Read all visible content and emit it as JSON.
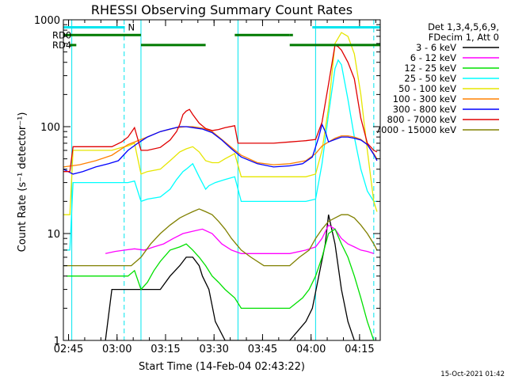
{
  "chart_data": {
    "type": "line",
    "title": "RHESSI Observing Summary Count Rates",
    "xlabel": "Start Time (14-Feb-04 02:43:22)",
    "ylabel": "Count Rate (s⁻¹ detector⁻¹)",
    "x_unit": "minutes since 02:43:22",
    "xlim": [
      0,
      98
    ],
    "ylim": [
      1,
      1000
    ],
    "y_scale": "log",
    "x_ticks": [
      {
        "x": 1.6,
        "label": "02:45"
      },
      {
        "x": 16.6,
        "label": "03:00"
      },
      {
        "x": 31.6,
        "label": "03:15"
      },
      {
        "x": 46.6,
        "label": "03:30"
      },
      {
        "x": 61.6,
        "label": "03:45"
      },
      {
        "x": 76.6,
        "label": "04:00"
      },
      {
        "x": 91.6,
        "label": "04:15"
      }
    ],
    "y_ticks": [
      {
        "y": 1,
        "label": "1"
      },
      {
        "y": 10,
        "label": "10"
      },
      {
        "y": 100,
        "label": "100"
      },
      {
        "y": 1000,
        "label": "1000"
      }
    ],
    "legend_header": [
      "Det 1,3,4,5,6,9,",
      "FDecim 1, Att 0"
    ],
    "legend_position": "right",
    "timestamp": "15-Oct-2021 01:42",
    "markers": [
      {
        "label": "N",
        "color": "#00e5ee",
        "y": 850,
        "segments": [
          [
            0,
            19
          ]
        ]
      },
      {
        "label": "RD0",
        "color": "#007a00",
        "y": 720,
        "segments": [
          [
            0,
            24
          ],
          [
            53,
            70
          ],
          [
            70,
            71
          ]
        ]
      },
      {
        "label": "RD4",
        "color": "#007a00",
        "y": 580,
        "segments": [
          [
            2,
            4
          ],
          [
            24,
            44
          ],
          [
            70,
            98
          ]
        ]
      }
    ],
    "marker_extra": [
      {
        "color": "#00e5ee",
        "y": 850,
        "segments": [
          [
            77,
            98
          ]
        ]
      }
    ],
    "vlines": [
      {
        "x": 2.6,
        "color": "#00e5ee",
        "style": "solid"
      },
      {
        "x": 18.8,
        "color": "#00e5ee",
        "style": "dashed"
      },
      {
        "x": 24.0,
        "color": "#00e5ee",
        "style": "solid"
      },
      {
        "x": 54.0,
        "color": "#00e5ee",
        "style": "solid"
      },
      {
        "x": 78.0,
        "color": "#00e5ee",
        "style": "solid"
      },
      {
        "x": 96.0,
        "color": "#00e5ee",
        "style": "dashed"
      }
    ],
    "series": [
      {
        "name": "3 - 6 keV",
        "color": "#000000",
        "x": [
          13,
          15,
          18,
          22,
          26,
          30,
          33,
          36,
          38,
          40,
          42,
          43,
          45,
          47,
          50,
          55,
          60,
          65,
          70,
          75,
          77,
          79,
          81,
          82,
          84,
          86,
          88,
          90,
          92,
          94,
          96
        ],
        "y": [
          1,
          3,
          3,
          3,
          3,
          3,
          4,
          5,
          6,
          6,
          5,
          4,
          3,
          1.5,
          1,
          1,
          1,
          1,
          1,
          1.5,
          2,
          4,
          8,
          15,
          8,
          3,
          1.5,
          1,
          1,
          1,
          1
        ]
      },
      {
        "name": "6 - 12 keV",
        "color": "#ff00ff",
        "x": [
          13,
          16,
          19,
          22,
          25,
          28,
          31,
          34,
          37,
          40,
          43,
          46,
          49,
          52,
          55,
          60,
          65,
          70,
          75,
          78,
          80,
          82,
          84,
          86,
          88,
          90,
          92,
          94,
          96
        ],
        "y": [
          6.5,
          6.8,
          7,
          7.2,
          7,
          7.5,
          8,
          9,
          10,
          10.5,
          11,
          10,
          8,
          7,
          6.5,
          6.5,
          6.5,
          6.5,
          7,
          7.5,
          9,
          12,
          11,
          9,
          8,
          7.5,
          7,
          6.8,
          6.5
        ]
      },
      {
        "name": "12 - 25 keV",
        "color": "#00e000",
        "x": [
          1,
          3,
          6,
          9,
          12,
          15,
          18,
          20,
          22,
          24,
          26,
          28,
          30,
          33,
          36,
          38,
          40,
          42,
          44,
          46,
          48,
          50,
          53,
          55,
          58,
          62,
          66,
          70,
          74,
          76,
          78,
          80,
          82,
          84,
          86,
          88,
          90,
          92,
          94,
          96
        ],
        "y": [
          4,
          4,
          4,
          4,
          4,
          4,
          4,
          4,
          4.5,
          3,
          3.5,
          4.5,
          5.5,
          7,
          7.5,
          8,
          7,
          6,
          5,
          4,
          3.5,
          3,
          2.5,
          2,
          2,
          2,
          2,
          2,
          2.5,
          3,
          4,
          6,
          10,
          11,
          8,
          6,
          4,
          2.5,
          1.5,
          1
        ]
      },
      {
        "name": "25 - 50 keV",
        "color": "#00ffff",
        "x": [
          0,
          2,
          3,
          5,
          10,
          15,
          18,
          20,
          22,
          24,
          26,
          30,
          33,
          35,
          37,
          38,
          40,
          42,
          44,
          45,
          47,
          50,
          53,
          55,
          60,
          65,
          70,
          75,
          78,
          80,
          82,
          84,
          85,
          86,
          88,
          90,
          92,
          94,
          96,
          97
        ],
        "y": [
          7,
          7,
          30,
          30,
          30,
          30,
          30,
          30,
          31,
          20,
          21,
          22,
          26,
          32,
          38,
          40,
          45,
          34,
          26,
          28,
          30,
          32,
          34,
          20,
          20,
          20,
          20,
          20,
          21,
          45,
          130,
          350,
          420,
          380,
          180,
          80,
          40,
          25,
          20,
          20
        ]
      },
      {
        "name": "50 - 100 keV",
        "color": "#e6e600",
        "x": [
          0,
          2,
          3,
          5,
          10,
          15,
          18,
          20,
          22,
          24,
          26,
          30,
          33,
          36,
          38,
          40,
          42,
          44,
          46,
          48,
          50,
          53,
          55,
          60,
          65,
          70,
          75,
          78,
          80,
          82,
          84,
          86,
          88,
          90,
          92,
          94,
          96,
          97
        ],
        "y": [
          15,
          15,
          60,
          60,
          60,
          60,
          64,
          66,
          70,
          36,
          38,
          40,
          48,
          58,
          62,
          65,
          58,
          48,
          46,
          46,
          50,
          56,
          34,
          34,
          34,
          34,
          34,
          36,
          60,
          150,
          600,
          760,
          700,
          480,
          200,
          60,
          20,
          16
        ]
      },
      {
        "name": "100 - 300 keV",
        "color": "#ff8000",
        "x": [
          0,
          5,
          10,
          15,
          20,
          25,
          30,
          35,
          38,
          40,
          43,
          46,
          49,
          52,
          55,
          60,
          65,
          70,
          75,
          78,
          80,
          82,
          84,
          86,
          88,
          90,
          92,
          94,
          96,
          97
        ],
        "y": [
          42,
          44,
          48,
          54,
          68,
          78,
          90,
          98,
          100,
          100,
          97,
          90,
          76,
          64,
          54,
          46,
          44,
          45,
          48,
          56,
          66,
          72,
          78,
          82,
          82,
          80,
          76,
          68,
          56,
          50
        ]
      },
      {
        "name": "300 - 800 keV",
        "color": "#0000ff",
        "x": [
          0,
          3,
          6,
          10,
          14,
          17,
          20,
          23,
          26,
          30,
          33,
          36,
          38,
          40,
          43,
          46,
          49,
          52,
          55,
          60,
          65,
          70,
          74,
          77,
          79,
          80,
          81,
          82,
          84,
          86,
          88,
          90,
          92,
          94,
          96,
          97
        ],
        "y": [
          40,
          36,
          38,
          42,
          45,
          48,
          60,
          70,
          80,
          90,
          95,
          100,
          100,
          98,
          95,
          88,
          75,
          62,
          52,
          45,
          42,
          43,
          45,
          52,
          80,
          105,
          90,
          72,
          76,
          80,
          80,
          78,
          75,
          68,
          55,
          48
        ]
      },
      {
        "name": "800 - 7000 keV",
        "color": "#e00000",
        "x": [
          0,
          2,
          3,
          5,
          10,
          15,
          18,
          20,
          22,
          24,
          26,
          30,
          33,
          35,
          36,
          37,
          38,
          39,
          40,
          42,
          44,
          46,
          48,
          50,
          53,
          54,
          55,
          60,
          65,
          70,
          75,
          78,
          80,
          82,
          84,
          85,
          86,
          88,
          90,
          92,
          94,
          96,
          97
        ],
        "y": [
          38,
          38,
          65,
          65,
          65,
          65,
          72,
          80,
          98,
          60,
          60,
          64,
          75,
          90,
          105,
          130,
          140,
          145,
          130,
          108,
          96,
          92,
          94,
          98,
          102,
          70,
          70,
          70,
          70,
          72,
          74,
          76,
          110,
          250,
          580,
          560,
          520,
          400,
          280,
          120,
          70,
          60,
          58
        ]
      },
      {
        "name": "7000 - 15000 keV",
        "color": "#808000",
        "x": [
          0,
          3,
          6,
          10,
          14,
          18,
          21,
          24,
          27,
          30,
          33,
          36,
          38,
          40,
          42,
          44,
          46,
          48,
          50,
          52,
          55,
          58,
          62,
          66,
          70,
          73,
          76,
          78,
          80,
          82,
          84,
          86,
          88,
          90,
          92,
          94,
          96,
          97
        ],
        "y": [
          5,
          5,
          5,
          5,
          5,
          5,
          5,
          6,
          8,
          10,
          12,
          14,
          15,
          16,
          17,
          16,
          15,
          13,
          11,
          9,
          7,
          6,
          5,
          5,
          5,
          6,
          7,
          9,
          11,
          13,
          14,
          15,
          15,
          14,
          12,
          10,
          8,
          7
        ]
      }
    ]
  }
}
